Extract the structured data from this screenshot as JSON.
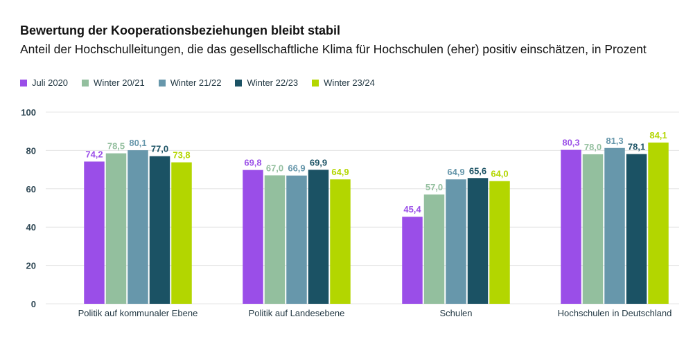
{
  "chart_data": {
    "type": "bar",
    "title": "Bewertung der Kooperationsbeziehungen bleibt stabil",
    "subtitle": "Anteil der Hochschulleitungen, die das gesellschaftliche Klima für Hochschulen (eher) positiv einschätzen, in Prozent",
    "categories": [
      "Politik auf kommunaler Ebene",
      "Politik auf Landesebene",
      "Schulen",
      "Hochschulen in Deutschland"
    ],
    "series": [
      {
        "name": "Juli 2020",
        "color": "#9a4ee8",
        "values": [
          74.2,
          69.8,
          45.4,
          80.3
        ],
        "labels": [
          "74,2",
          "69,8",
          "45,4",
          "80,3"
        ]
      },
      {
        "name": "Winter 20/21",
        "color": "#93bf9e",
        "values": [
          78.5,
          67.0,
          57.0,
          78.0
        ],
        "labels": [
          "78,5",
          "67,0",
          "57,0",
          "78,0"
        ]
      },
      {
        "name": "Winter 21/22",
        "color": "#6797ab",
        "values": [
          80.1,
          66.9,
          64.9,
          81.3
        ],
        "labels": [
          "80,1",
          "66,9",
          "64,9",
          "81,3"
        ]
      },
      {
        "name": "Winter 22/23",
        "color": "#1b5264",
        "values": [
          77.0,
          69.9,
          65.6,
          78.1
        ],
        "labels": [
          "77,0",
          "69,9",
          "65,6",
          "78,1"
        ]
      },
      {
        "name": "Winter 23/24",
        "color": "#b3d600",
        "values": [
          73.8,
          64.9,
          64.0,
          84.1
        ],
        "labels": [
          "73,8",
          "64,9",
          "64,0",
          "84,1"
        ]
      }
    ],
    "yticks": [
      "0",
      "20",
      "40",
      "60",
      "80",
      "100"
    ],
    "ylim": [
      0,
      100
    ],
    "grid": true,
    "legend_position": "top-left"
  }
}
